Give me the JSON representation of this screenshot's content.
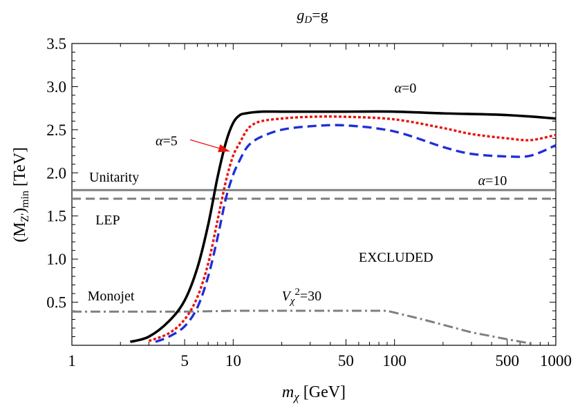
{
  "chart_data": {
    "type": "line",
    "title": "g_D=g",
    "title_parts": {
      "main": "g",
      "sub": "D",
      "rest": "=g"
    },
    "xlabel": "m_χ [GeV]",
    "xlabel_parts": {
      "main": "m",
      "sub": "χ",
      "rest": " [GeV]"
    },
    "ylabel": "(M_Z')_min [TeV]",
    "ylabel_parts": {
      "pre": "(M",
      "sub1": "Z'",
      "mid": ")",
      "sub2": "min",
      "rest": " [TeV]"
    },
    "xscale": "log",
    "xlim": [
      1,
      1000
    ],
    "ylim": [
      0,
      3.5
    ],
    "grid": false,
    "x_ticks": [
      {
        "value": 1,
        "label": "1"
      },
      {
        "value": 5,
        "label": "5"
      },
      {
        "value": 10,
        "label": "10"
      },
      {
        "value": 50,
        "label": "50"
      },
      {
        "value": 100,
        "label": "100"
      },
      {
        "value": 500,
        "label": "500"
      },
      {
        "value": 1000,
        "label": "1000"
      }
    ],
    "y_ticks": [
      {
        "value": 0.5,
        "label": "0.5"
      },
      {
        "value": 1.0,
        "label": "1.0"
      },
      {
        "value": 1.5,
        "label": "1.5"
      },
      {
        "value": 2.0,
        "label": "2.0"
      },
      {
        "value": 2.5,
        "label": "2.5"
      },
      {
        "value": 3.0,
        "label": "3.0"
      },
      {
        "value": 3.5,
        "label": "3.5"
      }
    ],
    "series": [
      {
        "name": "α=0",
        "color": "#000000",
        "style": "solid",
        "x": [
          2.3,
          3,
          4,
          5,
          6,
          7,
          8,
          9,
          10,
          11,
          12,
          13,
          15,
          20,
          30,
          50,
          100,
          200,
          500,
          1000
        ],
        "y": [
          0.04,
          0.1,
          0.28,
          0.52,
          0.9,
          1.4,
          1.95,
          2.35,
          2.58,
          2.67,
          2.69,
          2.7,
          2.71,
          2.71,
          2.71,
          2.71,
          2.71,
          2.69,
          2.67,
          2.63
        ]
      },
      {
        "name": "α=5",
        "color": "#e8140e",
        "style": "dotted",
        "x": [
          3,
          4,
          5,
          6,
          7,
          8,
          9,
          10,
          11,
          12,
          13,
          15,
          20,
          30,
          50,
          100,
          200,
          300,
          500,
          700,
          1000
        ],
        "y": [
          0.05,
          0.14,
          0.3,
          0.56,
          0.95,
          1.45,
          1.9,
          2.2,
          2.35,
          2.48,
          2.55,
          2.6,
          2.63,
          2.65,
          2.65,
          2.62,
          2.52,
          2.45,
          2.4,
          2.38,
          2.44
        ]
      },
      {
        "name": "α=10",
        "color": "#1f2fd9",
        "style": "dashed",
        "x": [
          3.3,
          4,
          5,
          6,
          7,
          8,
          9,
          10,
          11,
          12,
          13,
          15,
          20,
          30,
          50,
          100,
          200,
          300,
          500,
          700,
          1000
        ],
        "y": [
          0.04,
          0.1,
          0.22,
          0.44,
          0.8,
          1.25,
          1.7,
          1.98,
          2.15,
          2.28,
          2.35,
          2.42,
          2.5,
          2.54,
          2.55,
          2.48,
          2.3,
          2.22,
          2.19,
          2.2,
          2.32
        ]
      }
    ],
    "bounds": [
      {
        "name": "Unitarity",
        "color": "#7f7f7f",
        "style": "solid",
        "x": [
          1,
          1000
        ],
        "y": [
          1.8,
          1.8
        ]
      },
      {
        "name": "LEP",
        "color": "#7f7f7f",
        "style": "dashed",
        "x": [
          1,
          1000
        ],
        "y": [
          1.7,
          1.7
        ]
      },
      {
        "name": "Monojet",
        "color": "#7f7f7f",
        "style": "dashdot",
        "x": [
          1,
          5,
          10,
          30,
          50,
          90,
          150,
          300,
          500,
          700
        ],
        "y": [
          0.39,
          0.39,
          0.4,
          0.4,
          0.4,
          0.4,
          0.3,
          0.15,
          0.07,
          0.02
        ]
      }
    ],
    "annotations": [
      {
        "text": "α=0",
        "x": 100,
        "y": 2.93,
        "color": "#000000"
      },
      {
        "text": "α=5",
        "x": 3.3,
        "y": 2.32,
        "color": "#e8140e",
        "arrow_to": {
          "x": 9.5,
          "y": 2.25
        }
      },
      {
        "text": "α=10",
        "x": 330,
        "y": 1.86,
        "color": "#1f2fd9"
      },
      {
        "text": "Unitarity",
        "x": 1.28,
        "y": 1.9,
        "color": "#000000"
      },
      {
        "text": "LEP",
        "x": 1.4,
        "y": 1.4,
        "color": "#000000"
      },
      {
        "text": "EXCLUDED",
        "x": 60,
        "y": 0.97,
        "color": "#000000"
      },
      {
        "text": "Monojet",
        "x": 1.25,
        "y": 0.52,
        "color": "#000000"
      },
      {
        "text": "V_χ^2=30",
        "x": 20,
        "y": 0.52,
        "color": "#000000"
      }
    ]
  }
}
